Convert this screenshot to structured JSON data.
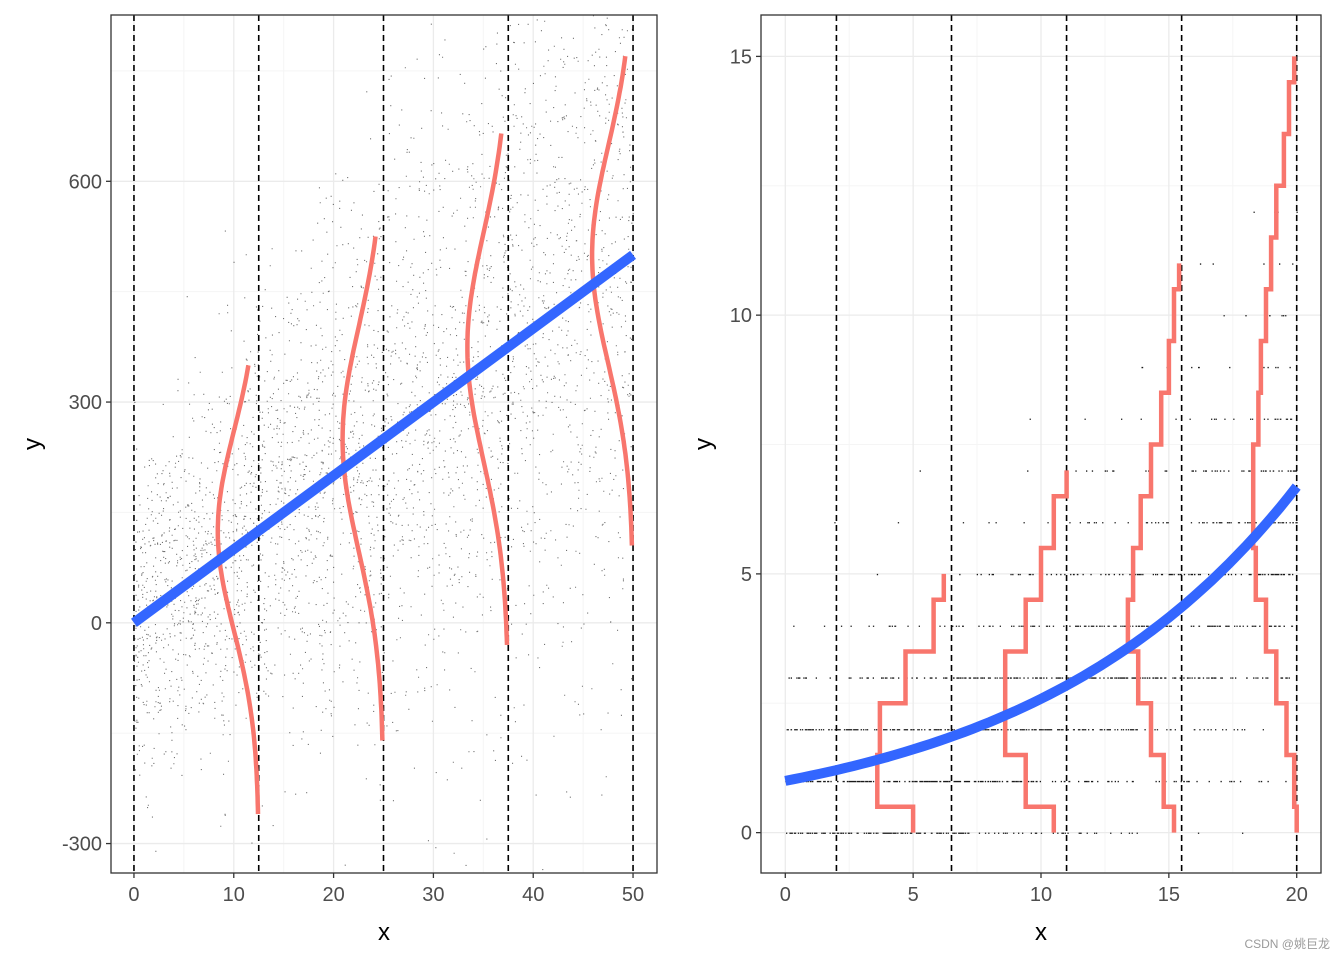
{
  "colors": {
    "points": "#000000",
    "fit_line": "#3366ff",
    "distribution": "#f8766d",
    "grid_major": "#ebebeb",
    "grid_minor": "#f5f5f5",
    "panel_border": "#333333",
    "guide_line": "#000000"
  },
  "watermark": "CSDN @姚巨龙",
  "chart_data": [
    {
      "type": "scatter",
      "overlay": [
        "linear fit line",
        "normal density curves at 5 x positions",
        "vertical dashed guide lines"
      ],
      "xlabel": "x",
      "ylabel": "y",
      "xlim": [
        -2.3,
        52.4
      ],
      "ylim": [
        -340,
        826
      ],
      "x_ticks": [
        0,
        10,
        20,
        30,
        40,
        50
      ],
      "x_tick_labels": [
        "0",
        "10",
        "20",
        "30",
        "40",
        "50"
      ],
      "y_ticks": [
        -300,
        0,
        300,
        600
      ],
      "y_tick_labels": [
        "-300",
        "0",
        "300",
        "600"
      ],
      "grid": true,
      "point_cloud": {
        "n": 3500,
        "x_range": [
          0,
          50
        ],
        "mean_intercept": 0,
        "mean_slope": 10,
        "sd_intercept": 110,
        "sd_slope": 3.3
      },
      "fit_line": {
        "x": [
          0,
          50
        ],
        "y": [
          0,
          500
        ]
      },
      "guide_lines_x": [
        0,
        12.5,
        25,
        37.5,
        50
      ],
      "density_curves": [
        {
          "x_anchor": 12.5,
          "mean": 125,
          "y_range": [
            -260,
            350
          ],
          "peak_x": 8.4
        },
        {
          "x_anchor": 25,
          "mean": 250,
          "y_range": [
            -160,
            525
          ],
          "peak_x": 20.9
        },
        {
          "x_anchor": 37.5,
          "mean": 375,
          "y_range": [
            -30,
            665
          ],
          "peak_x": 33.4
        },
        {
          "x_anchor": 50,
          "mean": 500,
          "y_range": [
            105,
            770
          ],
          "peak_x": 45.9
        }
      ]
    },
    {
      "type": "scatter",
      "overlay": [
        "exponential fit curve",
        "stepped count distributions at 5 x positions",
        "vertical dashed guide lines"
      ],
      "xlabel": "x",
      "ylabel": "y",
      "xlim": [
        -0.95,
        20.95
      ],
      "ylim": [
        -0.78,
        15.8
      ],
      "x_ticks": [
        0,
        5,
        10,
        15,
        20
      ],
      "x_tick_labels": [
        "0",
        "5",
        "10",
        "15",
        "20"
      ],
      "y_ticks": [
        0,
        5,
        10,
        15
      ],
      "y_tick_labels": [
        "0",
        "5",
        "10",
        "15"
      ],
      "grid": true,
      "point_cloud": {
        "n": 1400,
        "x_range": [
          0,
          20
        ],
        "model": "poisson",
        "mean_formula": "exp(0.095 * x)"
      },
      "fit_curve": {
        "formula": "exp(0.095 * x)",
        "x_range": [
          0,
          20
        ]
      },
      "guide_lines_x": [
        2,
        6.5,
        11,
        15.5,
        20
      ],
      "step_distributions": [
        {
          "x_anchor": 6.5,
          "counts_y": [
            0,
            1,
            2,
            3,
            4,
            5
          ],
          "left_x": [
            5,
            3.6,
            3.7,
            4.7,
            5.8,
            6.2
          ]
        },
        {
          "x_anchor": 11,
          "counts_y": [
            0,
            1,
            2,
            3,
            4,
            5,
            6,
            7
          ],
          "left_x": [
            10.5,
            9.4,
            8.6,
            8.6,
            9.4,
            10.0,
            10.5,
            11.0
          ]
        },
        {
          "x_anchor": 15.5,
          "counts_y": [
            0,
            1,
            2,
            3,
            4,
            5,
            6,
            7,
            8,
            9,
            10,
            11
          ],
          "left_x": [
            15.2,
            14.8,
            14.3,
            13.8,
            13.4,
            13.6,
            13.9,
            14.3,
            14.7,
            15.0,
            15.2,
            15.4
          ]
        },
        {
          "x_anchor": 20,
          "counts_y": [
            0,
            1,
            2,
            3,
            4,
            5,
            6,
            7,
            8,
            9,
            10,
            11,
            12,
            13,
            14,
            15
          ],
          "left_x": [
            20,
            19.9,
            19.6,
            19.2,
            18.8,
            18.4,
            18.3,
            18.3,
            18.5,
            18.6,
            18.8,
            19.0,
            19.2,
            19.5,
            19.7,
            19.9
          ]
        }
      ]
    }
  ]
}
